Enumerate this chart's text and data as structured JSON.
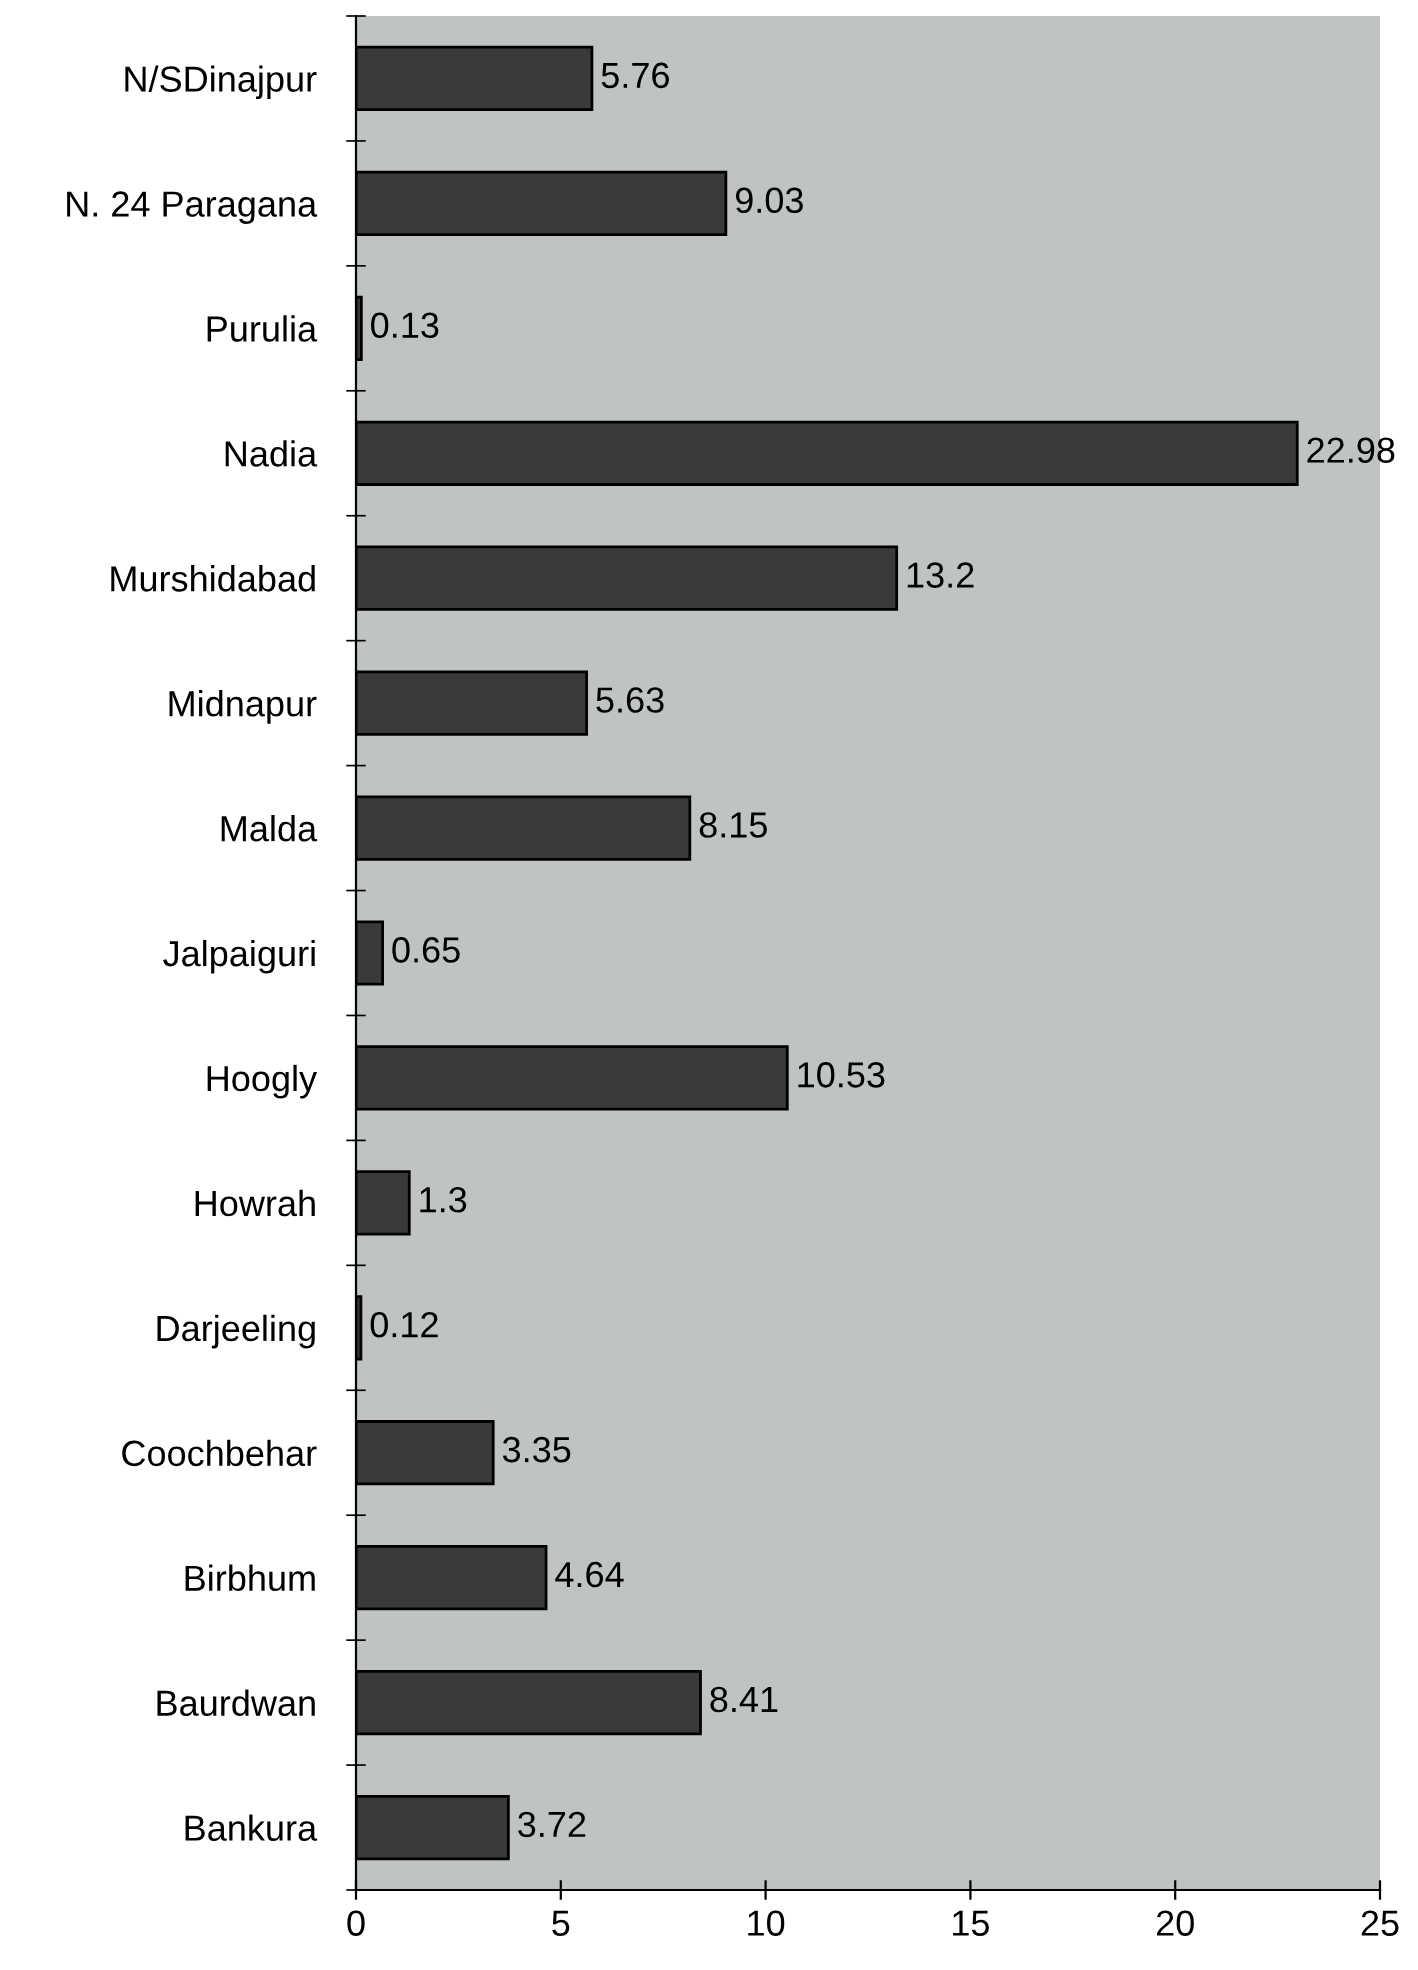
{
  "chart_data": {
    "type": "bar",
    "orientation": "horizontal",
    "categories": [
      "N/SDinajpur",
      "N. 24 Paragana",
      "Purulia",
      "Nadia",
      "Murshidabad",
      "Midnapur",
      "Malda",
      "Jalpaiguri",
      "Hoogly",
      "Howrah",
      "Darjeeling",
      "Coochbehar",
      "Birbhum",
      "Baurdwan",
      "Bankura"
    ],
    "values": [
      5.76,
      9.03,
      0.13,
      22.98,
      13.2,
      5.63,
      8.15,
      0.65,
      10.53,
      1.3,
      0.12,
      3.35,
      4.64,
      8.41,
      3.72
    ],
    "color": "#3a3a3a",
    "xlim": [
      0,
      25
    ],
    "xticks": [
      0,
      5,
      10,
      15,
      20,
      25
    ],
    "data_labels": true,
    "grid": false,
    "legend": false
  }
}
